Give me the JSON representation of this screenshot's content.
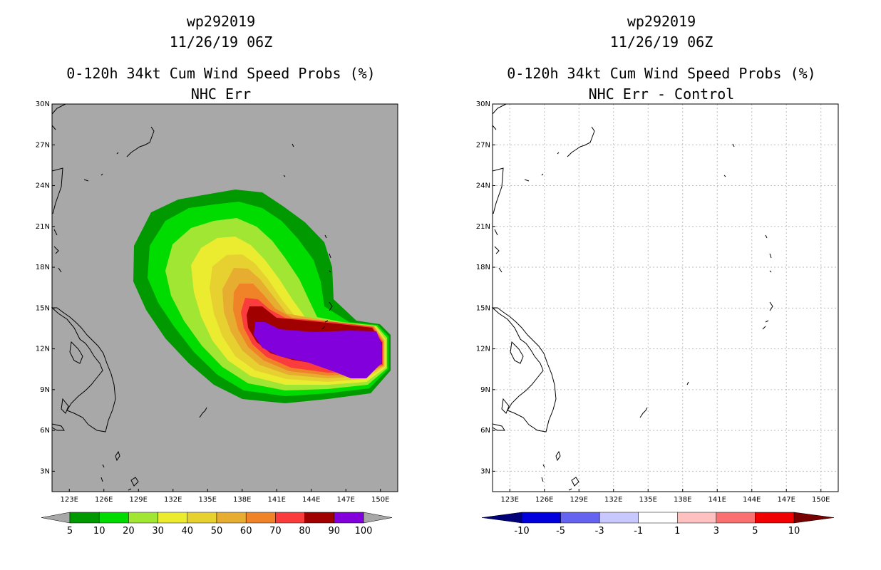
{
  "chart_data": [
    {
      "type": "heatmap",
      "panel": "left",
      "title_lines": [
        "wp292019",
        "11/26/19 06Z",
        "0-120h 34kt Cum Wind Speed Probs (%)",
        "NHC Err"
      ],
      "xlim": [
        121.5,
        151.5
      ],
      "ylim": [
        1.5,
        30
      ],
      "x_ticks": [
        123,
        126,
        129,
        132,
        135,
        138,
        141,
        144,
        147,
        150
      ],
      "x_tick_labels": [
        "123E",
        "126E",
        "129E",
        "132E",
        "135E",
        "138E",
        "141E",
        "144E",
        "147E",
        "150E"
      ],
      "y_ticks": [
        3,
        6,
        9,
        12,
        15,
        18,
        21,
        24,
        27,
        30
      ],
      "y_tick_labels": [
        "3N",
        "6N",
        "9N",
        "12N",
        "15N",
        "18N",
        "21N",
        "24N",
        "27N",
        "30N"
      ],
      "background_color": "#a8a8a8",
      "contour_levels": [
        5,
        10,
        20,
        30,
        40,
        50,
        60,
        70,
        80,
        90
      ],
      "contour_colors": [
        "#009a00",
        "#00dc00",
        "#a0e632",
        "#ebeb30",
        "#e6d130",
        "#e6ad30",
        "#f08228",
        "#fa3c3c",
        "#a00000",
        "#8200dc"
      ],
      "colorbar": {
        "labels": [
          "5",
          "10",
          "20",
          "30",
          "40",
          "50",
          "60",
          "70",
          "80",
          "90",
          "100"
        ],
        "colors": [
          "#009a00",
          "#00dc00",
          "#a0e632",
          "#ebeb30",
          "#e6d130",
          "#e6ad30",
          "#f08228",
          "#fa3c3c",
          "#a00000",
          "#8200dc"
        ],
        "extend_low_color": "#a8a8a8",
        "extend_high_color": "#a8a8a8"
      }
    },
    {
      "type": "heatmap",
      "panel": "right",
      "title_lines": [
        "wp292019",
        "11/26/19 06Z",
        "0-120h 34kt Cum Wind Speed Probs (%)",
        "NHC Err - Control"
      ],
      "xlim": [
        121.5,
        151.5
      ],
      "ylim": [
        1.5,
        30
      ],
      "x_ticks": [
        123,
        126,
        129,
        132,
        135,
        138,
        141,
        144,
        147,
        150
      ],
      "x_tick_labels": [
        "123E",
        "126E",
        "129E",
        "132E",
        "135E",
        "138E",
        "141E",
        "144E",
        "147E",
        "150E"
      ],
      "y_ticks": [
        3,
        6,
        9,
        12,
        15,
        18,
        21,
        24,
        27,
        30
      ],
      "y_tick_labels": [
        "3N",
        "6N",
        "9N",
        "12N",
        "15N",
        "18N",
        "21N",
        "24N",
        "27N",
        "30N"
      ],
      "grid": true,
      "background_color": "#ffffff",
      "colorbar": {
        "labels": [
          "-10",
          "-5",
          "-3",
          "-1",
          "1",
          "3",
          "5",
          "10"
        ],
        "colors": [
          "#0000dc",
          "#6464f0",
          "#c8c8ff",
          "#ffffff",
          "#ffc0c0",
          "#fa7070",
          "#f00000"
        ],
        "extend_low_color": "#000078",
        "extend_high_color": "#780000"
      }
    }
  ]
}
